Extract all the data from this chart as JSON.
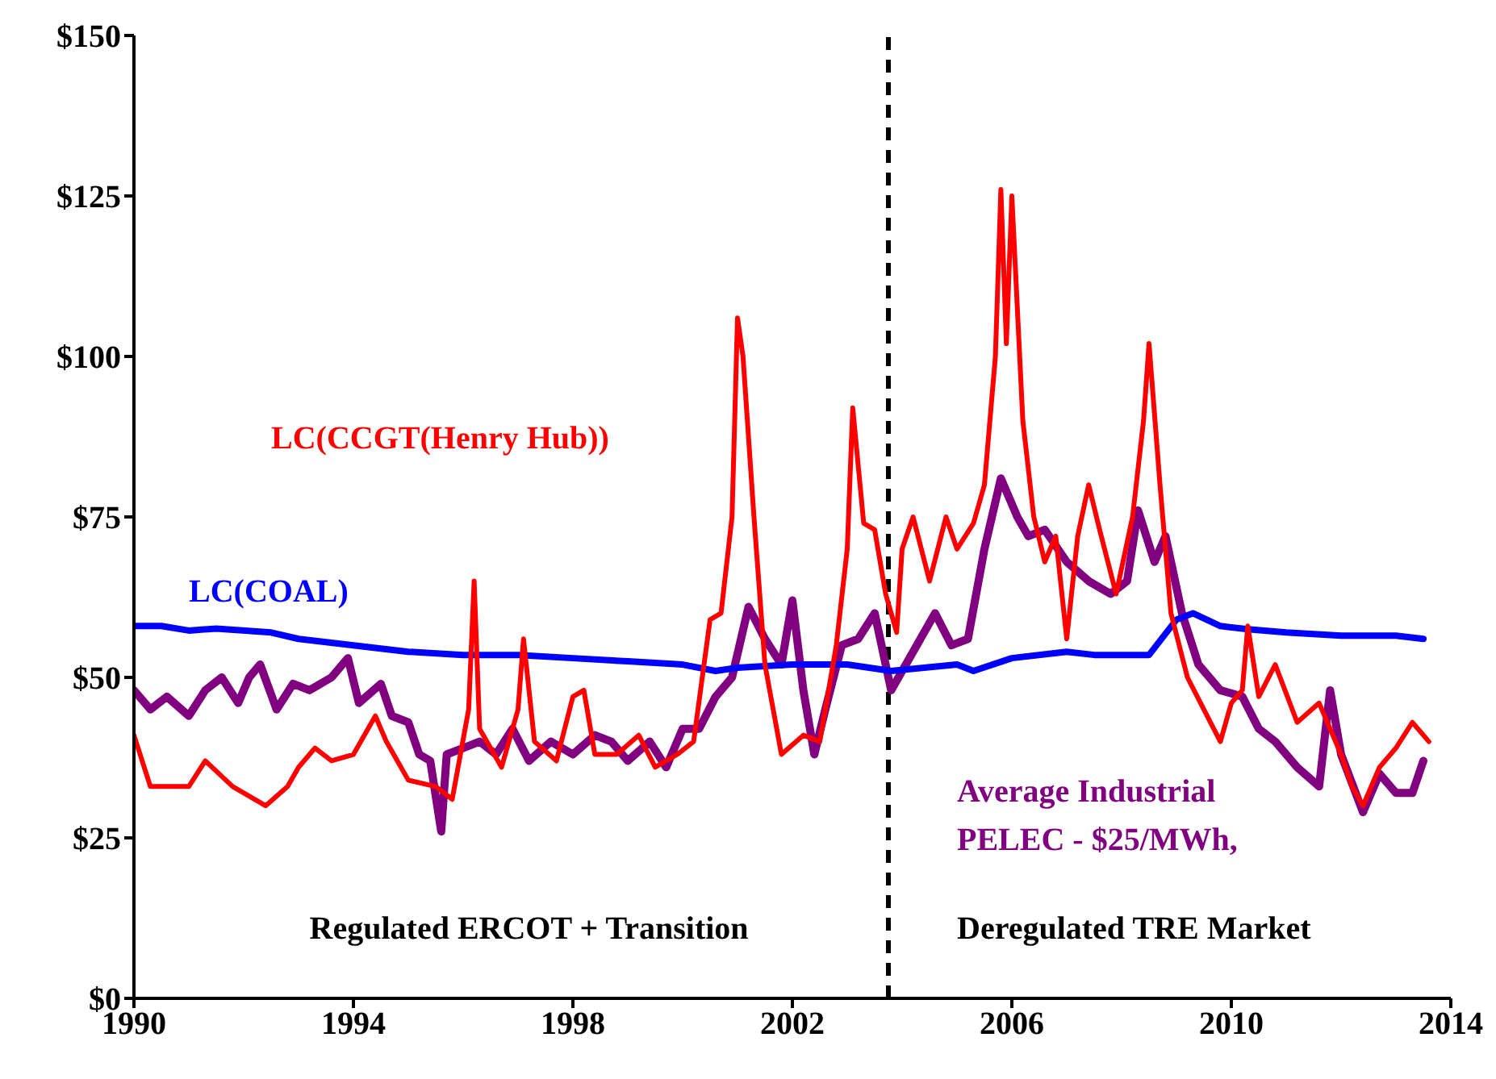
{
  "chart_data": {
    "type": "line",
    "xlim": [
      1990,
      2014
    ],
    "xticks": [
      1990,
      1994,
      1998,
      2002,
      2006,
      2010,
      2014
    ],
    "ylim": [
      0,
      150
    ],
    "yticks": [
      {
        "value": 0,
        "label": "$0"
      },
      {
        "value": 25,
        "label": "$25"
      },
      {
        "value": 50,
        "label": "$50"
      },
      {
        "value": 75,
        "label": "$75"
      },
      {
        "value": 100,
        "label": "$100"
      },
      {
        "value": 125,
        "label": "$125"
      },
      {
        "value": 150,
        "label": "$150"
      }
    ],
    "legend": false,
    "marker": "none",
    "ref_lines": [
      {
        "axis": "x",
        "value": 2003.75,
        "color": "#000000",
        "line_style": "dashed"
      }
    ],
    "annotations": [
      "Regulated ERCOT + Transition",
      "Deregulated TRE Market"
    ],
    "series": [
      {
        "name": "LC(CCGT(Henry Hub))",
        "color": "#ff0000",
        "x": [
          1990,
          1990.3,
          1991,
          1991.3,
          1991.8,
          1992.4,
          1992.8,
          1993,
          1993.3,
          1993.6,
          1994,
          1994.4,
          1994.6,
          1995,
          1995.5,
          1995.8,
          1996.1,
          1996.2,
          1996.3,
          1996.7,
          1997,
          1997.1,
          1997.3,
          1997.7,
          1998,
          1998.2,
          1998.4,
          1998.8,
          1999.2,
          1999.5,
          1999.9,
          2000.2,
          2000.5,
          2000.7,
          2000.9,
          2001,
          2001.1,
          2001.3,
          2001.5,
          2001.8,
          2002.2,
          2002.5,
          2002.8,
          2003,
          2003.1,
          2003.3,
          2003.5,
          2003.7,
          2003.9,
          2004,
          2004.2,
          2004.5,
          2004.8,
          2005,
          2005.3,
          2005.5,
          2005.7,
          2005.8,
          2005.9,
          2006,
          2006.2,
          2006.4,
          2006.6,
          2006.8,
          2007,
          2007.2,
          2007.4,
          2007.6,
          2007.9,
          2008.2,
          2008.4,
          2008.5,
          2008.7,
          2008.9,
          2009.2,
          2009.5,
          2009.8,
          2010,
          2010.2,
          2010.3,
          2010.5,
          2010.8,
          2011.2,
          2011.6,
          2012,
          2012.2,
          2012.4,
          2012.7,
          2013,
          2013.3,
          2013.6
        ],
        "values": [
          41,
          33,
          33,
          37,
          33,
          30,
          33,
          36,
          39,
          37,
          38,
          44,
          40,
          34,
          33,
          31,
          45,
          65,
          42,
          36,
          45,
          56,
          40,
          37,
          47,
          48,
          38,
          38,
          41,
          36,
          38,
          40,
          59,
          60,
          75,
          106,
          100,
          75,
          52,
          38,
          41,
          40,
          55,
          70,
          92,
          74,
          73,
          63,
          57,
          70,
          75,
          65,
          75,
          70,
          74,
          80,
          100,
          126,
          102,
          125,
          90,
          75,
          68,
          72,
          56,
          72,
          80,
          73,
          63,
          75,
          90,
          102,
          80,
          60,
          50,
          45,
          40,
          46,
          48,
          58,
          47,
          52,
          43,
          46,
          38,
          33,
          30,
          36,
          39,
          43,
          40
        ]
      },
      {
        "name": "LC(COAL)",
        "color": "#0000ff",
        "x": [
          1990,
          1990.5,
          1991,
          1991.5,
          1992.5,
          1993,
          1994,
          1995,
          1996,
          1997,
          1998,
          1999,
          2000,
          2000.6,
          2001,
          2002,
          2003,
          2003.8,
          2005,
          2005.3,
          2006,
          2007,
          2007.5,
          2008.5,
          2009,
          2009.3,
          2009.8,
          2010.3,
          2011,
          2012,
          2013,
          2013.5
        ],
        "values": [
          58,
          58,
          57.3,
          57.6,
          57,
          56,
          55,
          54,
          53.5,
          53.5,
          53,
          52.5,
          52,
          51,
          51.5,
          52,
          52,
          51,
          52,
          51,
          53,
          54,
          53.5,
          53.5,
          59,
          60,
          58,
          57.5,
          57,
          56.5,
          56.5,
          56
        ]
      },
      {
        "name": "Average Industrial PELEC - $25/MWh,",
        "color": "#800080",
        "x": [
          1990,
          1990.3,
          1990.6,
          1991,
          1991.3,
          1991.6,
          1991.9,
          1992.1,
          1992.3,
          1992.6,
          1992.9,
          1993.2,
          1993.6,
          1993.9,
          1994.1,
          1994.5,
          1994.7,
          1995,
          1995.2,
          1995.4,
          1995.6,
          1995.7,
          1996,
          1996.3,
          1996.6,
          1996.9,
          1997.2,
          1997.6,
          1998,
          1998.4,
          1998.7,
          1999,
          1999.4,
          1999.7,
          2000,
          2000.3,
          2000.6,
          2000.9,
          2001.2,
          2001.5,
          2001.8,
          2002,
          2002.2,
          2002.4,
          2002.6,
          2002.9,
          2003.2,
          2003.5,
          2003.8,
          2004.2,
          2004.6,
          2004.9,
          2005.2,
          2005.5,
          2005.8,
          2006.1,
          2006.3,
          2006.6,
          2007,
          2007.4,
          2007.8,
          2008.1,
          2008.3,
          2008.6,
          2008.8,
          2009.1,
          2009.4,
          2009.8,
          2010.2,
          2010.5,
          2010.8,
          2011.2,
          2011.6,
          2011.8,
          2012,
          2012.4,
          2012.7,
          2013,
          2013.3,
          2013.5
        ],
        "values": [
          48,
          45,
          47,
          44,
          48,
          50,
          46,
          50,
          52,
          45,
          49,
          48,
          50,
          53,
          46,
          49,
          44,
          43,
          38,
          37,
          26,
          38,
          39,
          40,
          38,
          42,
          37,
          40,
          38,
          41,
          40,
          37,
          40,
          36,
          42,
          42,
          47,
          50,
          61,
          56,
          52,
          62,
          48,
          38,
          45,
          55,
          56,
          60,
          48,
          54,
          60,
          55,
          56,
          70,
          81,
          75,
          72,
          73,
          68,
          65,
          63,
          65,
          76,
          68,
          72,
          60,
          52,
          48,
          47,
          42,
          40,
          36,
          33,
          48,
          38,
          29,
          35,
          32,
          32,
          37
        ]
      }
    ]
  }
}
